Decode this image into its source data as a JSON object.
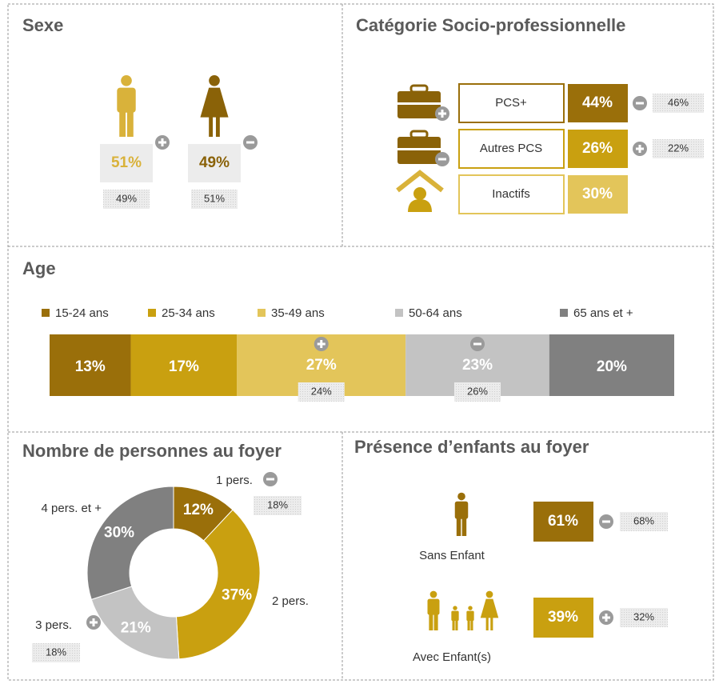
{
  "sexe": {
    "title": "Sexe",
    "items": [
      {
        "value": "51%",
        "reference": "49%",
        "trend": "plus",
        "color": "#d9b23a",
        "figure": "man"
      },
      {
        "value": "49%",
        "reference": "51%",
        "trend": "minus",
        "color": "#8a6208",
        "figure": "woman"
      }
    ]
  },
  "csp": {
    "title": "Catégorie Socio-professionnelle",
    "rows": [
      {
        "label": "PCS+",
        "value": "44%",
        "reference": "46%",
        "trend": "minus",
        "color": "#9a6f0a"
      },
      {
        "label": "Autres PCS",
        "value": "26%",
        "reference": "22%",
        "trend": "plus",
        "color": "#c9a010"
      },
      {
        "label": "Inactifs",
        "value": "30%",
        "reference": null,
        "trend": null,
        "color": "#e3c55a"
      }
    ]
  },
  "age": {
    "title": "Age",
    "type": "stacked-bar",
    "categories": [
      "15-24 ans",
      "25-34 ans",
      "35-49 ans",
      "50-64 ans",
      "65 ans et +"
    ],
    "values": [
      13,
      17,
      27,
      23,
      20
    ],
    "value_labels": [
      "13%",
      "17%",
      "27%",
      "23%",
      "20%"
    ],
    "colors": [
      "#9a6f0a",
      "#c9a010",
      "#e3c55a",
      "#c3c3c3",
      "#808080"
    ],
    "references": [
      null,
      null,
      "24%",
      "26%",
      null
    ],
    "trends": [
      null,
      null,
      "plus",
      "minus",
      null
    ]
  },
  "foyer": {
    "title": "Nombre de personnes au foyer",
    "type": "donut",
    "categories": [
      "1 pers.",
      "2 pers.",
      "3 pers.",
      "4 pers. et +"
    ],
    "values": [
      12,
      37,
      21,
      30
    ],
    "value_labels": [
      "12%",
      "37%",
      "21%",
      "30%"
    ],
    "colors": [
      "#9a6f0a",
      "#c9a010",
      "#c3c3c3",
      "#808080"
    ],
    "references": [
      "18%",
      null,
      "18%",
      null
    ],
    "trends": [
      "minus",
      null,
      "plus",
      null
    ]
  },
  "enfants": {
    "title": "Présence d’enfants au foyer",
    "rows": [
      {
        "label": "Sans Enfant",
        "value": "61%",
        "reference": "68%",
        "trend": "minus",
        "color": "#9a6f0a",
        "figure": "single"
      },
      {
        "label": "Avec Enfant(s)",
        "value": "39%",
        "reference": "32%",
        "trend": "plus",
        "color": "#c9a010",
        "figure": "family"
      }
    ]
  }
}
